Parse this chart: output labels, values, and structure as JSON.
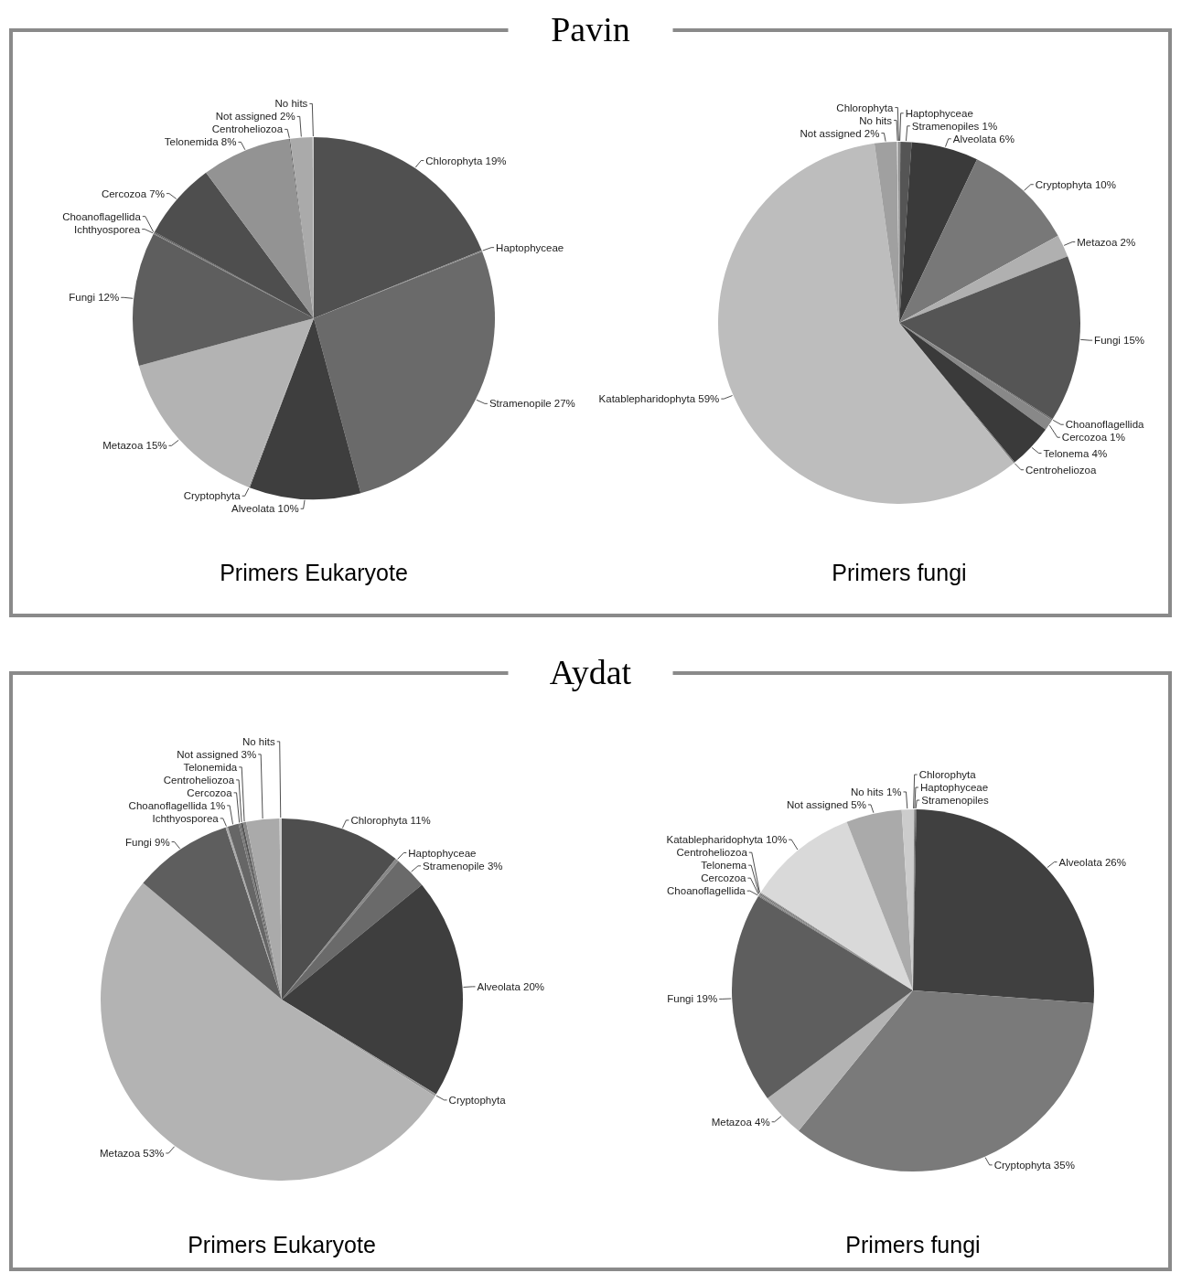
{
  "chart_data": [
    {
      "type": "pie",
      "title": "Primers Eukaryote",
      "annotations": [
        "Pavin"
      ],
      "categories": [
        "Chlorophyta",
        "Haptophyceae",
        "Stramenopile",
        "Alveolata",
        "Cryptophyta",
        "Metazoa",
        "Fungi",
        "Ichthyosporea",
        "Choanoflagellida",
        "Cercozoa",
        "Telonemida",
        "Centroheliozoa",
        "Not assigned",
        "No hits"
      ],
      "values": [
        19,
        0.1,
        27,
        10,
        0.1,
        15,
        12,
        0.1,
        0.1,
        7,
        8,
        0.1,
        2,
        0.1
      ],
      "value_labels": [
        "19%",
        null,
        "27%",
        "10%",
        null,
        "15%",
        "12%",
        null,
        null,
        "7%",
        "8%",
        null,
        "2%",
        null
      ],
      "colors": [
        "#505050",
        "#888888",
        "#6a6a6a",
        "#3e3e3e",
        "#999999",
        "#b3b3b3",
        "#5e5e5e",
        "#777777",
        "#555555",
        "#4e4e4e",
        "#939393",
        "#666666",
        "#aaaaaa",
        "#cccccc"
      ]
    },
    {
      "type": "pie",
      "title": "Primers fungi",
      "categories": [
        "Haptophyceae",
        "Stramenopiles",
        "Alveolata",
        "Cryptophyta",
        "Metazoa",
        "Fungi",
        "Choanoflagellida",
        "Cercozoa",
        "Telonema",
        "Centroheliozoa",
        "Katablepharidophyta",
        "Not assigned",
        "No hits",
        "Chlorophyta"
      ],
      "values": [
        0.1,
        1,
        6,
        10,
        2,
        15,
        0.1,
        1,
        4,
        0.1,
        59,
        2,
        0.1,
        0.1
      ],
      "value_labels": [
        null,
        "1%",
        "6%",
        "10%",
        "2%",
        "15%",
        null,
        "1%",
        "4%",
        null,
        "59%",
        "2%",
        null,
        null
      ],
      "colors": [
        "#999999",
        "#555555",
        "#3a3a3a",
        "#787878",
        "#b0b0b0",
        "#555555",
        "#666666",
        "#888888",
        "#3a3a3a",
        "#777777",
        "#bdbdbd",
        "#a0a0a0",
        "#cccccc",
        "#888888"
      ]
    },
    {
      "type": "pie",
      "title": "Primers Eukaryote",
      "annotations": [
        "Aydat"
      ],
      "categories": [
        "Chlorophyta",
        "Haptophyceae",
        "Stramenopile",
        "Alveolata",
        "Cryptophyta",
        "Metazoa",
        "Fungi",
        "Ichthyosporea",
        "Choanoflagellida",
        "Cercozoa",
        "Centroheliozoa",
        "Telonemida",
        "Not assigned",
        "No hits"
      ],
      "values": [
        11,
        0.3,
        3,
        20,
        0.2,
        53,
        9,
        0.2,
        1,
        0.2,
        0.2,
        0.3,
        3,
        0.2
      ],
      "value_labels": [
        "11%",
        null,
        "3%",
        "20%",
        null,
        "53%",
        "9%",
        null,
        "1%",
        null,
        null,
        null,
        "3%",
        null
      ],
      "colors": [
        "#4e4e4e",
        "#888888",
        "#6a6a6a",
        "#3e3e3e",
        "#999999",
        "#b3b3b3",
        "#5e5e5e",
        "#aaaaaa",
        "#666666",
        "#777777",
        "#555555",
        "#888888",
        "#aaaaaa",
        "#cccccc"
      ]
    },
    {
      "type": "pie",
      "title": "Primers fungi",
      "categories": [
        "Chlorophyta",
        "Haptophyceae",
        "Stramenopiles",
        "Alveolata",
        "Cryptophyta",
        "Metazoa",
        "Fungi",
        "Choanoflagellida",
        "Cercozoa",
        "Telonema",
        "Centroheliozoa",
        "Katablepharidophyta",
        "Not assigned",
        "No hits"
      ],
      "values": [
        0.1,
        0.1,
        0.1,
        26,
        35,
        4,
        19,
        0.1,
        0.1,
        0.1,
        0.1,
        10,
        5,
        1
      ],
      "value_labels": [
        null,
        null,
        null,
        "26%",
        "35%",
        "4%",
        "19%",
        null,
        null,
        null,
        null,
        "10%",
        "5%",
        "1%"
      ],
      "colors": [
        "#cccccc",
        "#888888",
        "#555555",
        "#404040",
        "#7a7a7a",
        "#b3b3b3",
        "#5e5e5e",
        "#777777",
        "#888888",
        "#666666",
        "#999999",
        "#d9d9d9",
        "#aaaaaa",
        "#cccccc"
      ]
    }
  ]
}
